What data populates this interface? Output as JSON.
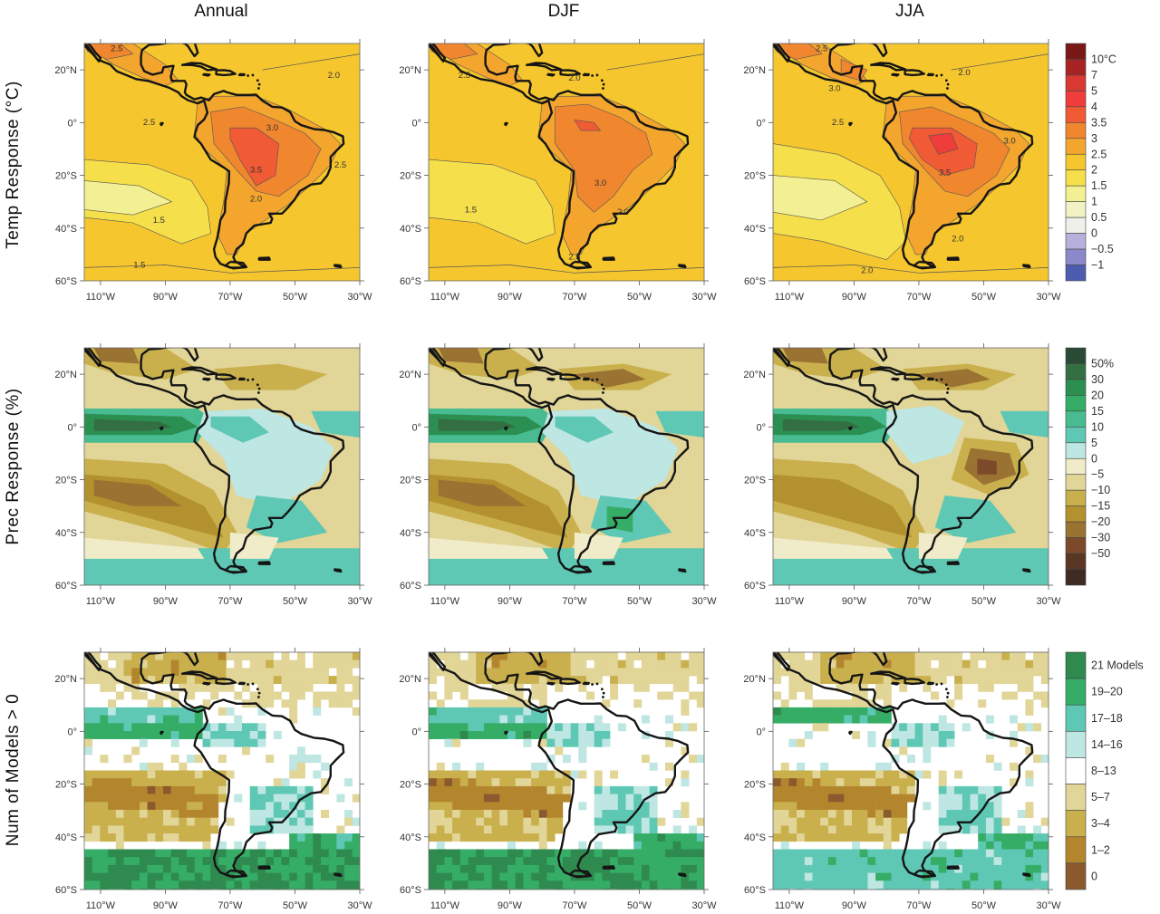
{
  "columns": [
    "Annual",
    "DJF",
    "JJA"
  ],
  "rows": [
    {
      "title": "Temp Response (°C)",
      "colorbar": [
        {
          "label": "10°C",
          "color": "#7a1818"
        },
        {
          "label": "7",
          "color": "#a82424"
        },
        {
          "label": "5",
          "color": "#d83a32"
        },
        {
          "label": "4",
          "color": "#ee3d3a"
        },
        {
          "label": "3.5",
          "color": "#f05a34"
        },
        {
          "label": "3",
          "color": "#f0862e"
        },
        {
          "label": "2.5",
          "color": "#f3a52e"
        },
        {
          "label": "2",
          "color": "#f6c62e"
        },
        {
          "label": "1.5",
          "color": "#f5df4a"
        },
        {
          "label": "1",
          "color": "#f3f094"
        },
        {
          "label": "0.5",
          "color": "#f2f2c4"
        },
        {
          "label": "0",
          "color": "#f0f0ea"
        },
        {
          "label": "−0.5",
          "color": "#b8b0dc"
        },
        {
          "label": "−1",
          "color": "#8b88cc"
        },
        {
          "label": "",
          "color": "#4e5cb0"
        }
      ]
    },
    {
      "title": "Prec Response (%)",
      "colorbar": [
        {
          "label": "50%",
          "color": "#2a4a36"
        },
        {
          "label": "30",
          "color": "#336f43"
        },
        {
          "label": "20",
          "color": "#2c8f52"
        },
        {
          "label": "15",
          "color": "#35ad66"
        },
        {
          "label": "10",
          "color": "#48bb90"
        },
        {
          "label": "5",
          "color": "#5ec8b4"
        },
        {
          "label": "0",
          "color": "#bee6e2"
        },
        {
          "label": "−5",
          "color": "#f0ebc8"
        },
        {
          "label": "−10",
          "color": "#e1d597"
        },
        {
          "label": "−15",
          "color": "#c9b04d"
        },
        {
          "label": "−20",
          "color": "#b3912e"
        },
        {
          "label": "−30",
          "color": "#9a7232"
        },
        {
          "label": "−50",
          "color": "#7c4a2a"
        },
        {
          "label": "",
          "color": "#5a3624"
        },
        {
          "label": "",
          "color": "#3d2b24"
        }
      ]
    },
    {
      "title": "Num of Models > 0",
      "colorbar": [
        {
          "label": "21 Models",
          "color": "#2e8a4e"
        },
        {
          "label": "19–20",
          "color": "#35ad66"
        },
        {
          "label": "17–18",
          "color": "#5ec8b4"
        },
        {
          "label": "14–16",
          "color": "#bee6e2"
        },
        {
          "label": "8–13",
          "color": "#ffffff"
        },
        {
          "label": "5–7",
          "color": "#e1d597"
        },
        {
          "label": "3–4",
          "color": "#c9b04d"
        },
        {
          "label": "1–2",
          "color": "#b3862e"
        },
        {
          "label": "0",
          "color": "#8a5a2e"
        }
      ]
    }
  ],
  "lat_ticks": [
    "20°N",
    "0°",
    "20°S",
    "40°S",
    "60°S"
  ],
  "lon_ticks": [
    "110°W",
    "90°W",
    "70°W",
    "50°W",
    "30°W"
  ],
  "contour_labels": {
    "annual": [
      "2.5",
      "2.0",
      "2.5",
      "3.0",
      "3.5",
      "2.5",
      "2.0",
      "1.5",
      "1.5"
    ],
    "djf": [
      "2.5",
      "2.0",
      "3.0",
      "2.0",
      "1.5",
      "2.5"
    ],
    "jja": [
      "2.5",
      "3.0",
      "2.0",
      "2.5",
      "3.0",
      "3.5",
      "2.0",
      "2.0"
    ]
  }
}
